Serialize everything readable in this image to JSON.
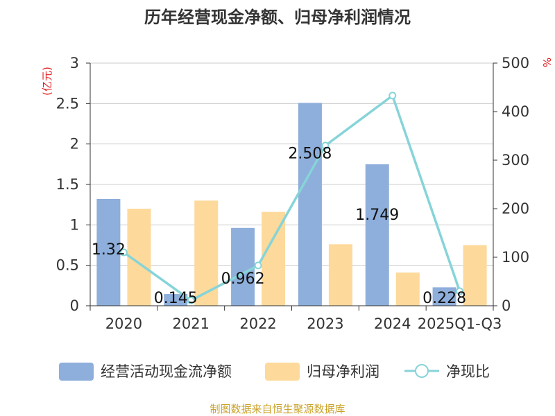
{
  "chart_data": {
    "type": "bar",
    "title": "历年经营现金净额、归母净利润情况",
    "categories": [
      "2020",
      "2021",
      "2022",
      "2023",
      "2024",
      "2025Q1-Q3"
    ],
    "series": [
      {
        "name": "经营活动现金流净额",
        "type": "bar",
        "axis": "left",
        "color": "#8eaedb",
        "values": [
          1.32,
          0.145,
          0.962,
          2.508,
          1.749,
          0.228
        ],
        "labels": [
          "1.32",
          "0.145",
          "0.962",
          "2.508",
          "1.749",
          "0.228"
        ]
      },
      {
        "name": "归母净利润",
        "type": "bar",
        "axis": "left",
        "color": "#fdd99b",
        "values": [
          1.2,
          1.3,
          1.16,
          0.76,
          0.41,
          0.75
        ]
      },
      {
        "name": "净现比",
        "type": "line",
        "axis": "right",
        "color": "#86d4d8",
        "values": [
          110,
          11,
          83,
          330,
          433,
          30
        ]
      }
    ],
    "y_left": {
      "unit": "(亿元)",
      "ylim": [
        0,
        3
      ],
      "ticks": [
        "0",
        "0.5",
        "1",
        "1.5",
        "2",
        "2.5",
        "3"
      ]
    },
    "y_right": {
      "unit": "%",
      "ylim": [
        0,
        500
      ],
      "ticks": [
        "0",
        "100",
        "200",
        "300",
        "400",
        "500"
      ]
    },
    "grid": true,
    "legend_position": "bottom"
  },
  "source": "制图数据来自恒生聚源数据库"
}
